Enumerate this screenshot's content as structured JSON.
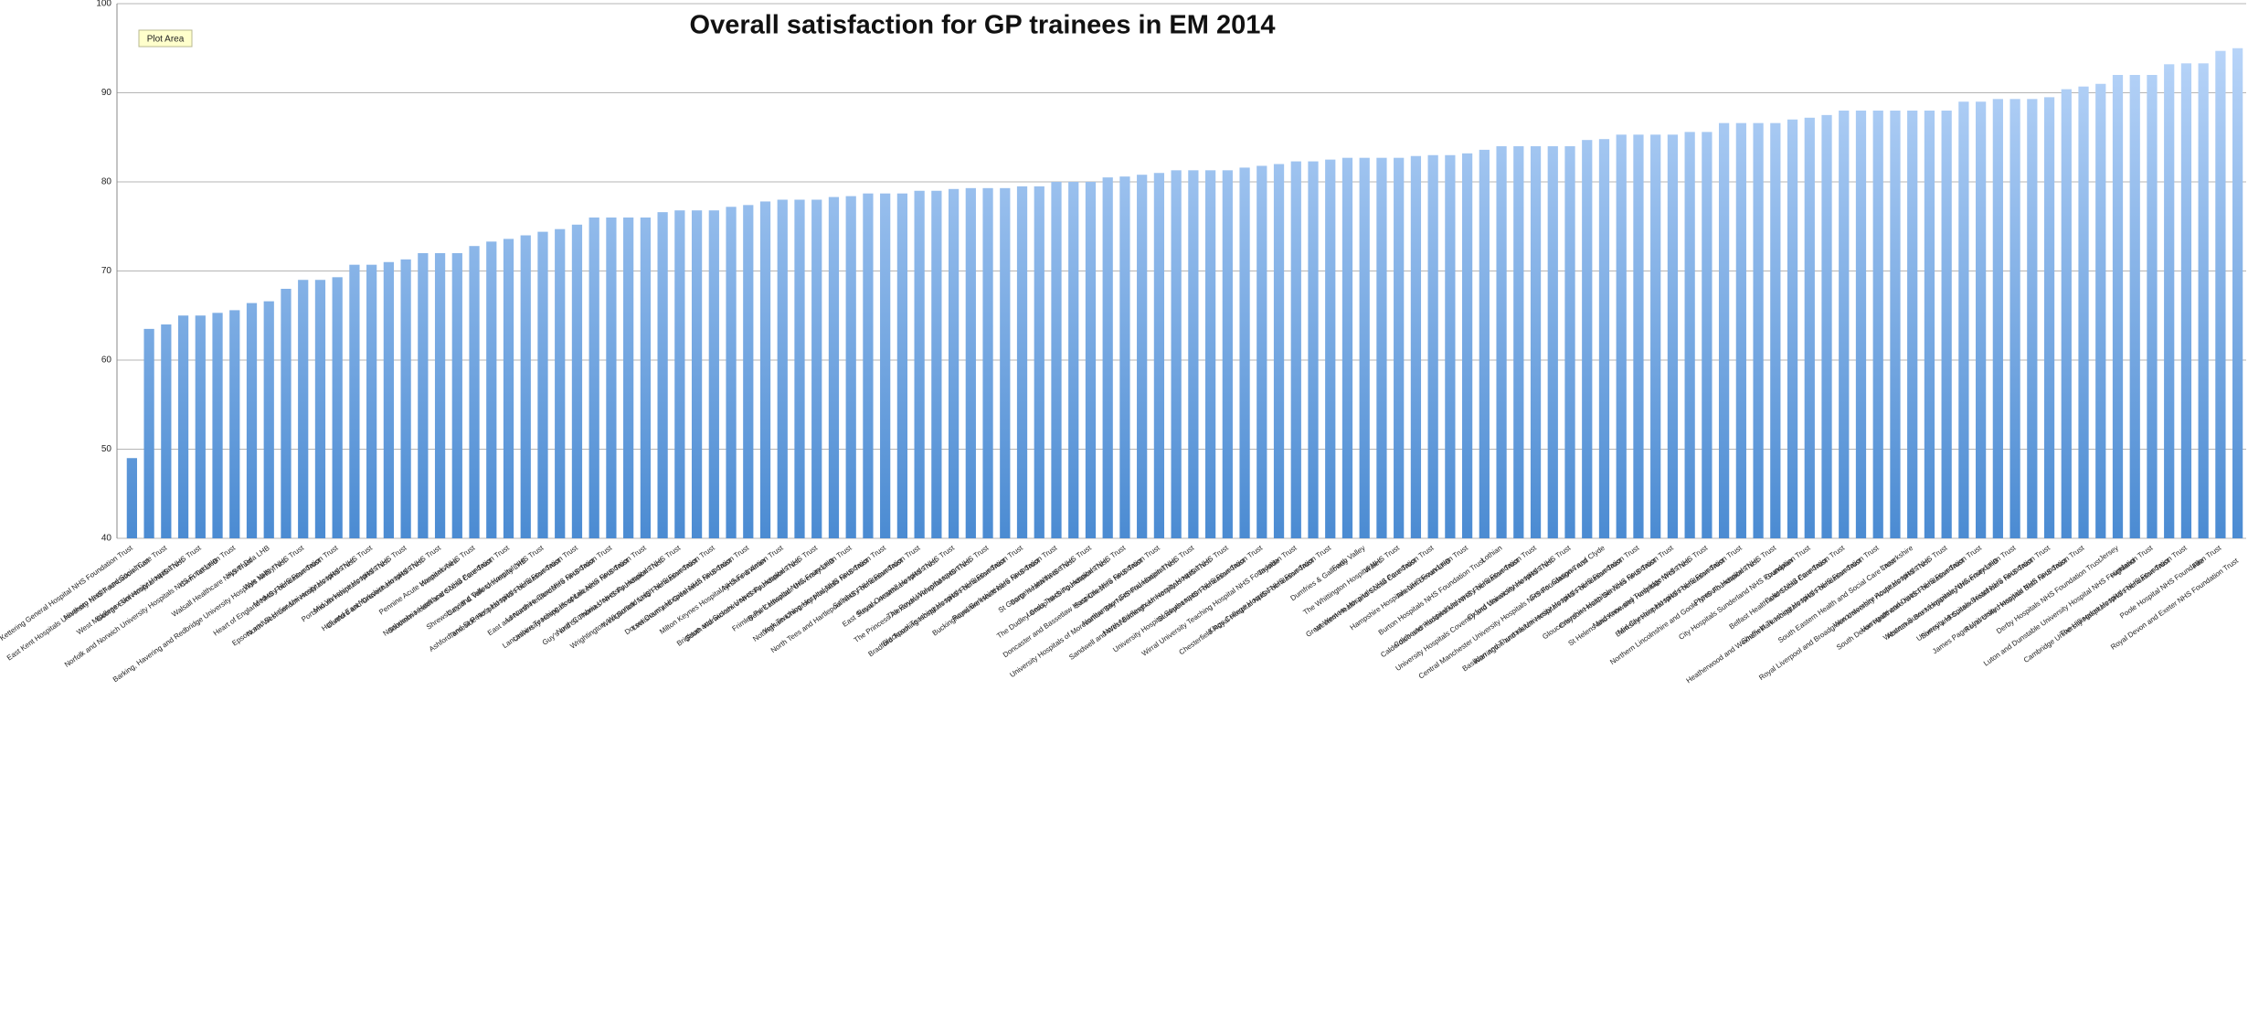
{
  "chart_data": {
    "type": "bar",
    "title": "Overall satisfaction for GP trainees in EM 2014",
    "annotations": [
      "Plot Area"
    ],
    "gradient": [
      "#c2dbfc",
      "#4b8bd2"
    ],
    "ylim": [
      40,
      100
    ],
    "yticks": [
      40,
      50,
      60,
      70,
      80,
      90,
      100
    ],
    "grid": true,
    "categories": [
      "Kettering General Hospital NHS Foundation Trust",
      "East Kent Hospitals University NHS Foundation Trust",
      "Northern Health and Social Care Trust",
      "George Eliot Hospital NHS Trust",
      "West Middlesex University Hospital NHS Trust",
      "Cwm Taf LHB",
      "Norfolk and Norwich University Hospitals NHS Foundation Trust",
      "Walsall Healthcare NHS Trust",
      "Hywel Dda LHB",
      "Barking, Havering and Redbridge University Hospitals NHS Trust",
      "Wye Valley NHS Trust",
      "Heart of England NHS Foundation Trust",
      "Medway NHS Foundation Trust",
      "North West London Hospitals NHS Trust",
      "Epsom and St Helier University Hospitals NHS Trust",
      "Portsmouth Hospitals NHS Trust",
      "Mid Yorkshire Hospitals NHS Trust",
      "Dartford and Gravesham NHS Trust",
      "Hull and East Yorkshire Hospitals NHS Trust",
      "Western Area",
      "Pennine Acute Hospitals NHS Trust",
      "Southern Health and Social Care Trust",
      "Northumbria Healthcare NHS Foundation Trust",
      "Cardiff & Vale University LHB",
      "Shrewsbury and Telford Hospital NHS Trust",
      "Tameside Hospital NHS Foundation Trust",
      "Ashford and St Peter's Hospitals NHS Foundation Trust",
      "East and North Hertfordshire NHS Trust",
      "Lancashire Care NHS Foundation Trust",
      "University Hospitals of Leicester NHS Trust",
      "Lancashire Teaching Hospitals NHS Foundation Trust",
      "Guy's and St Thomas' NHS Foundation Trust",
      "North Cumbria University Hospitals NHS Trust",
      "West Suffolk NHS Foundation Trust",
      "Wrightington, Wigan and Leigh NHS Foundation Trust",
      "Lewisham and Greenwich NHS Trust",
      "Dorset County Hospital NHS Foundation Trust",
      "Ayrshire & Arran",
      "Milton Keynes Hospital NHS Foundation Trust",
      "South Warwickshire NHS Foundation Trust",
      "Brighton and Sussex University Hospitals NHS Trust",
      "Betsi Cadwaladr University LHB",
      "Frimley Park Hospital NHS Foundation Trust",
      "Nottingham University Hospitals NHS Trust",
      "York Teaching Hospital NHS Foundation Trust",
      "North Tees and Hartlepool NHS Foundation Trust",
      "Salisbury NHS Foundation Trust",
      "East Sussex Healthcare NHS Trust",
      "Royal Cornwall Hospitals NHS Trust",
      "The Princess Alexandra Hospital NHS Trust",
      "The Royal Wolverhampton NHS Trust",
      "Bradford Teaching Hospitals NHS Foundation Trust",
      "Blackpool Teaching Hospitals NHS Foundation Trust",
      "Buckinghamshire Healthcare NHS Trust",
      "Royal Berkshire NHS Foundation Trust",
      "Barts Health NHS Trust",
      "St George's Healthcare NHS Trust",
      "The Dudley Group NHS Foundation Trust",
      "Leeds Teaching Hospitals NHS Trust",
      "East Cheshire NHS Trust",
      "Doncaster and Bassetlaw Hospitals NHS Foundation Trust",
      "University Hospitals of Morecambe Bay NHS Foundation Trust",
      "Northampton General Hospital NHS Trust",
      "Sandwell and West Birmingham Hospitals NHS Trust",
      "North Middlesex University Hospital NHS Trust",
      "Stockport NHS Foundation Trust",
      "University Hospital Southampton NHS Foundation Trust",
      "Tayside",
      "Wirral University Teaching Hospital NHS Foundation Trust",
      "Chesterfield Royal Hospital NHS Foundation Trust",
      "Kings College Hospital NHS Foundation Trust",
      "Dumfries & Galloway",
      "Forth Valley",
      "Wales",
      "The Whittington Hospital NHS Trust",
      "Western Health and Social Care Trust",
      "Great Western Hospitals NHS Foundation Trust",
      "Aneurin Bevan LHB",
      "Hampshire Hospitals NHS Foundation Trust",
      "Burton Hospitals NHS Foundation Trust",
      "Lothian",
      "Calderdale and Huddersfield NHS Foundation Trust",
      "Colchester Hospital University NHS Foundation Trust",
      "University Hospitals Coventry and Warwickshire NHS Trust",
      "Oxford University Hospitals NHS Trust",
      "Central Manchester University Hospitals NHS Foundation Trust",
      "Greater Glasgow and Clyde",
      "Warrington and Halton Hospitals NHS Foundation Trust",
      "Basildon and Thurrock University Hospitals NHS Foundation Trust",
      "Croydon Health Services NHS Trust",
      "Gloucestershire Hospitals NHS Foundation Trust",
      "St Helens and Knowsley Hospitals NHS Trust",
      "Maidstone and Tunbridge Wells NHS Trust",
      "Barnsley Hospital NHS Foundation Trust",
      "Mid Cheshire Hospitals NHS Foundation Trust",
      "Northern Lincolnshire and Goole NHS Foundation Trust",
      "Plymouth Hospitals NHS Trust",
      "Grampian",
      "City Hospitals Sunderland NHS Foundation Trust",
      "Belfast Health and Social Care Trust",
      "Bolton NHS Foundation Trust",
      "Heatherwood and Wexham Park Hospitals NHS Foundation Trust",
      "Sheffield Teaching Hospitals NHS Foundation Trust",
      "South Eastern Health and Social Care Trust",
      "Lanarkshire",
      "Royal Liverpool and Broadgreen University Hospitals NHS Trust",
      "Worcestershire Acute Hospitals NHS Trust",
      "South Devon Healthcare NHS Foundation Trust",
      "Harrogate and District NHS Foundation Trust",
      "Abertawe Bro Morgannwg University LHB",
      "Western Sussex Hospitals NHS Foundation Trust",
      "Surrey and Sussex Healthcare NHS Trust",
      "University Hospitals Bristol NHS Foundation Trust",
      "Royal United Hospital Bath NHS Trust",
      "James Paget University Hospitals NHS Foundation Trust",
      "Derby Hospitals NHS Foundation Trust",
      "Jersey",
      "Highland",
      "Luton and Dunstable University Hospital NHS Foundation Trust",
      "Cambridge University Hospitals NHS Foundation Trust",
      "The Hillingdon Hospitals NHS Foundation Trust",
      "Fife",
      "Poole Hospital NHS Foundation Trust",
      "Royal Devon and Exeter NHS Foundation Trust"
    ],
    "values": [
      49,
      63.5,
      64,
      65,
      65,
      65.3,
      65.6,
      66.4,
      66.6,
      68,
      69,
      69,
      69.3,
      70.7,
      70.7,
      71,
      71.3,
      72,
      72,
      72,
      72.8,
      73.3,
      73.6,
      74,
      74.4,
      74.7,
      75.2,
      76,
      76,
      76,
      76,
      76.6,
      76.8,
      76.8,
      76.8,
      77.2,
      77.4,
      77.8,
      78,
      78,
      78,
      78.3,
      78.4,
      78.7,
      78.7,
      78.7,
      79,
      79,
      79.2,
      79.3,
      79.3,
      79.3,
      79.5,
      79.5,
      80,
      80,
      80,
      80.5,
      80.6,
      80.8,
      81,
      81.3,
      81.3,
      81.3,
      81.3,
      81.6,
      81.8,
      82,
      82.3,
      82.3,
      82.5,
      82.7,
      82.7,
      82.7,
      82.7,
      82.9,
      83,
      83,
      83.2,
      83.6,
      84,
      84,
      84,
      84,
      84,
      84.7,
      84.8,
      85.3,
      85.3,
      85.3,
      85.3,
      85.6,
      85.6,
      86.6,
      86.6,
      86.6,
      86.6,
      87,
      87.2,
      87.5,
      88,
      88,
      88,
      88,
      88,
      88,
      88,
      89,
      89,
      89.3,
      89.3,
      89.3,
      89.5,
      90.4,
      90.7,
      91,
      92,
      92,
      92,
      93.2,
      93.3,
      93.3,
      94.7,
      95
    ]
  }
}
